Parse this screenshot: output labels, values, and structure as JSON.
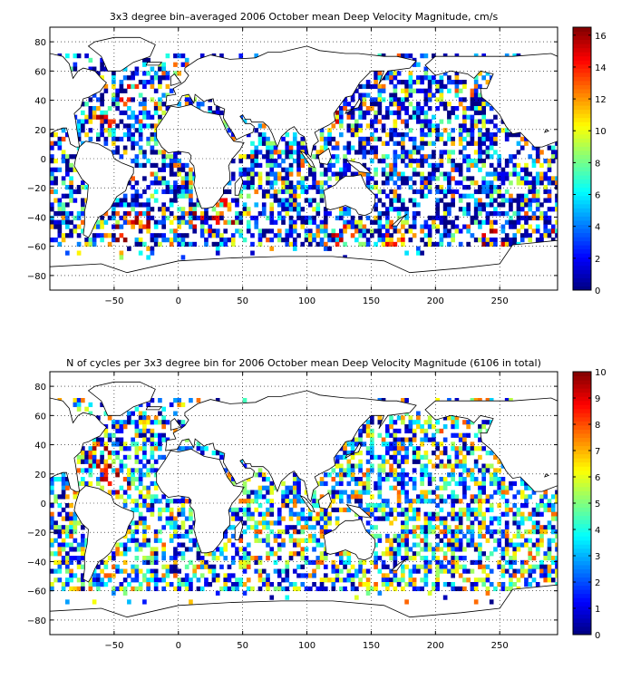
{
  "chart_data": [
    {
      "type": "heatmap",
      "title": "3x3 degree bin–averaged 2006 October mean Deep Velocity Magnitude, cm/s",
      "xlabel": "",
      "ylabel": "",
      "xlim": [
        -100,
        295
      ],
      "ylim": [
        -90,
        90
      ],
      "x_ticks": [
        -50,
        0,
        50,
        100,
        150,
        200,
        250
      ],
      "y_ticks": [
        80,
        60,
        40,
        20,
        0,
        -20,
        -40,
        -60,
        -80
      ],
      "grid": "dotted",
      "colorbar": {
        "min": 0,
        "max": 16.5,
        "ticks": [
          0,
          2,
          4,
          6,
          8,
          10,
          12,
          14,
          16
        ],
        "colormap": "jet"
      },
      "seed": 11,
      "skew": 2.2,
      "hotspots": [
        [
          -40,
          -47
        ],
        [
          -30,
          -45
        ],
        [
          20,
          -42
        ],
        [
          35,
          -38
        ],
        [
          170,
          -52
        ],
        [
          130,
          -55
        ],
        [
          245,
          -55
        ],
        [
          290,
          -55
        ],
        [
          -48,
          -57
        ],
        [
          -60,
          25
        ],
        [
          115,
          30
        ],
        [
          -40,
          45
        ]
      ]
    },
    {
      "type": "heatmap",
      "title": "N of cycles per 3x3 degree bin for 2006 October mean Deep Velocity Magnitude (6106 in total)",
      "xlabel": "",
      "ylabel": "",
      "xlim": [
        -100,
        295
      ],
      "ylim": [
        -90,
        90
      ],
      "x_ticks": [
        -50,
        0,
        50,
        100,
        150,
        200,
        250
      ],
      "y_ticks": [
        80,
        60,
        40,
        20,
        0,
        -20,
        -40,
        -60,
        -80
      ],
      "grid": "dotted",
      "colorbar": {
        "min": 0,
        "max": 10,
        "ticks": [
          0,
          1,
          2,
          3,
          4,
          5,
          6,
          7,
          8,
          9,
          10
        ],
        "colormap": "jet"
      },
      "seed": 29,
      "skew": 1.2,
      "hotspots": [
        [
          -60,
          30
        ],
        [
          -50,
          15
        ],
        [
          290,
          30
        ]
      ]
    }
  ]
}
